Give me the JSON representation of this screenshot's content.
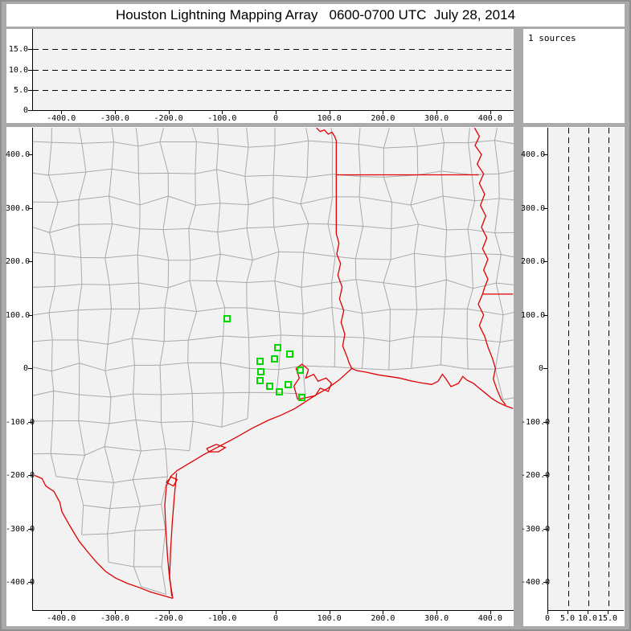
{
  "window": {
    "title": "Houston Lightning Mapping Array   0600-0700 UTC  July 28, 2014"
  },
  "colors": {
    "window_gray": "#aaaaaa",
    "panel_white": "#ffffff",
    "plot_gray": "#f2f2f2",
    "county_gray": "#a9a9a9",
    "border_red": "#e00000",
    "station_green": "#00d800",
    "axis_black": "#000000"
  },
  "sources_panel": {
    "label": "1 sources"
  },
  "altitude_top_panel": {
    "yticks": [
      {
        "v": 15,
        "label": "15.0"
      },
      {
        "v": 10,
        "label": "10.0"
      },
      {
        "v": 5,
        "label": "5.0"
      },
      {
        "v": 0,
        "label": "0"
      }
    ],
    "dash_levels": [
      5,
      10,
      15
    ],
    "xticks": [
      {
        "v": -400,
        "label": "-400.0"
      },
      {
        "v": -300,
        "label": "-300.0"
      },
      {
        "v": -200,
        "label": "-200.0"
      },
      {
        "v": -100,
        "label": "-100.0"
      },
      {
        "v": 0,
        "label": "0"
      },
      {
        "v": 100,
        "label": "100.0"
      },
      {
        "v": 200,
        "label": "200.0"
      },
      {
        "v": 300,
        "label": "300.0"
      },
      {
        "v": 400,
        "label": "400.0"
      }
    ]
  },
  "map_panel": {
    "x_range_km": [
      -454,
      443
    ],
    "y_range_km": [
      -454,
      448
    ],
    "xticks": [
      {
        "v": -400,
        "label": "-400.0"
      },
      {
        "v": -300,
        "label": "-300.0"
      },
      {
        "v": -200,
        "label": "-200.0"
      },
      {
        "v": -100,
        "label": "-100.0"
      },
      {
        "v": 0,
        "label": "0"
      },
      {
        "v": 100,
        "label": "100.0"
      },
      {
        "v": 200,
        "label": "200.0"
      },
      {
        "v": 300,
        "label": "300.0"
      },
      {
        "v": 400,
        "label": "400.0"
      }
    ],
    "yticks": [
      {
        "v": 400,
        "label": "400.0"
      },
      {
        "v": 300,
        "label": "300.0"
      },
      {
        "v": 200,
        "label": "200.0"
      },
      {
        "v": 100,
        "label": "100.0"
      },
      {
        "v": 0,
        "label": "0"
      },
      {
        "v": -100,
        "label": "-100.0"
      },
      {
        "v": -200,
        "label": "-200.0"
      },
      {
        "v": -300,
        "label": "-300.0"
      },
      {
        "v": -400,
        "label": "-400.0"
      }
    ]
  },
  "altitude_right_panel": {
    "xticks": [
      {
        "v": 0,
        "label": "0"
      },
      {
        "v": 5,
        "label": "5.0"
      },
      {
        "v": 10,
        "label": "10.0"
      },
      {
        "v": 15,
        "label": "15.0"
      }
    ],
    "dash_levels": [
      5,
      10,
      15
    ],
    "yticks": [
      {
        "v": 400,
        "label": "400.0"
      },
      {
        "v": 300,
        "label": "300.0"
      },
      {
        "v": 200,
        "label": "200.0"
      },
      {
        "v": 100,
        "label": "100.0"
      },
      {
        "v": 0,
        "label": "0"
      },
      {
        "v": -100,
        "label": "-100.0"
      },
      {
        "v": -200,
        "label": "-200.0"
      },
      {
        "v": -300,
        "label": "-300.0"
      },
      {
        "v": -400,
        "label": "-400.0"
      }
    ]
  },
  "stations_km": [
    [
      -93,
      92
    ],
    [
      1,
      38
    ],
    [
      -4,
      17
    ],
    [
      -31,
      12
    ],
    [
      24,
      26
    ],
    [
      -30,
      -8
    ],
    [
      43,
      -5
    ],
    [
      -32,
      -24
    ],
    [
      -13,
      -35
    ],
    [
      21,
      -32
    ],
    [
      4,
      -45
    ],
    [
      47,
      -56
    ]
  ],
  "map_geometry": {
    "red_lines": [
      [
        [
          75,
          448
        ],
        [
          82,
          441
        ],
        [
          90,
          444
        ],
        [
          97,
          436
        ],
        [
          104,
          440
        ],
        [
          109,
          432
        ],
        [
          112,
          424
        ],
        [
          112,
          420
        ]
      ],
      [
        [
          112,
          420
        ],
        [
          112,
          250
        ]
      ],
      [
        [
          112,
          250
        ],
        [
          117,
          232
        ],
        [
          113,
          212
        ],
        [
          120,
          194
        ],
        [
          115,
          172
        ],
        [
          123,
          150
        ],
        [
          118,
          128
        ],
        [
          126,
          106
        ],
        [
          121,
          84
        ],
        [
          128,
          62
        ],
        [
          124,
          40
        ],
        [
          132,
          20
        ],
        [
          136,
          8
        ],
        [
          141,
          -2
        ]
      ],
      [
        [
          112,
          360
        ],
        [
          378,
          360
        ]
      ],
      [
        [
          370,
          448
        ],
        [
          379,
          432
        ],
        [
          371,
          415
        ],
        [
          383,
          398
        ],
        [
          375,
          380
        ],
        [
          387,
          362
        ],
        [
          379,
          344
        ],
        [
          389,
          324
        ],
        [
          381,
          303
        ],
        [
          391,
          283
        ],
        [
          383,
          262
        ],
        [
          393,
          242
        ],
        [
          385,
          222
        ],
        [
          395,
          202
        ],
        [
          387,
          182
        ],
        [
          395,
          165
        ],
        [
          389,
          150
        ],
        [
          385,
          137
        ]
      ],
      [
        [
          385,
          137
        ],
        [
          442,
          137
        ]
      ],
      [
        [
          385,
          137
        ],
        [
          377,
          118
        ],
        [
          387,
          98
        ],
        [
          379,
          78
        ],
        [
          389,
          58
        ],
        [
          395,
          38
        ],
        [
          403,
          18
        ],
        [
          409,
          -2
        ],
        [
          405,
          -22
        ],
        [
          412,
          -42
        ],
        [
          420,
          -60
        ],
        [
          428,
          -70
        ]
      ],
      [
        [
          -193,
          -432
        ],
        [
          -199,
          -396
        ],
        [
          -203,
          -352
        ],
        [
          -206,
          -304
        ],
        [
          -208,
          -258
        ],
        [
          -205,
          -222
        ],
        [
          -197,
          -204
        ],
        [
          -185,
          -193
        ],
        [
          -160,
          -178
        ],
        [
          -135,
          -163
        ],
        [
          -105,
          -147
        ],
        [
          -75,
          -131
        ],
        [
          -45,
          -114
        ],
        [
          -15,
          -99
        ],
        [
          10,
          -89
        ],
        [
          35,
          -77
        ],
        [
          55,
          -64
        ],
        [
          75,
          -51
        ],
        [
          95,
          -40
        ],
        [
          118,
          -23
        ],
        [
          141,
          -2
        ],
        [
          150,
          -6
        ],
        [
          168,
          -9
        ],
        [
          190,
          -14
        ],
        [
          210,
          -17
        ],
        [
          230,
          -20
        ],
        [
          250,
          -25
        ],
        [
          270,
          -29
        ],
        [
          290,
          -32
        ],
        [
          302,
          -26
        ],
        [
          310,
          -13
        ],
        [
          317,
          -22
        ],
        [
          326,
          -36
        ],
        [
          340,
          -30
        ],
        [
          348,
          -17
        ],
        [
          356,
          -24
        ],
        [
          368,
          -30
        ],
        [
          380,
          -40
        ],
        [
          390,
          -48
        ],
        [
          402,
          -58
        ],
        [
          415,
          -66
        ],
        [
          428,
          -72
        ],
        [
          442,
          -77
        ]
      ],
      [
        [
          -186,
          -198
        ],
        [
          -190,
          -240
        ],
        [
          -194,
          -290
        ],
        [
          -197,
          -340
        ],
        [
          -199,
          -390
        ],
        [
          -195,
          -428
        ]
      ],
      [
        [
          40,
          -60
        ],
        [
          33,
          -35
        ],
        [
          43,
          -20
        ],
        [
          37,
          -2
        ],
        [
          48,
          6
        ],
        [
          60,
          -4
        ],
        [
          55,
          -20
        ],
        [
          70,
          -13
        ],
        [
          78,
          -26
        ],
        [
          93,
          -20
        ],
        [
          103,
          -30
        ],
        [
          97,
          -45
        ],
        [
          82,
          -39
        ],
        [
          73,
          -53
        ],
        [
          40,
          -60
        ]
      ],
      [
        [
          -130,
          -152
        ],
        [
          -112,
          -144
        ],
        [
          -95,
          -150
        ],
        [
          -108,
          -158
        ],
        [
          -125,
          -158
        ],
        [
          -130,
          -152
        ]
      ],
      [
        [
          -205,
          -215
        ],
        [
          -196,
          -205
        ],
        [
          -185,
          -210
        ],
        [
          -192,
          -222
        ],
        [
          -205,
          -215
        ]
      ],
      [
        [
          -451,
          -202
        ],
        [
          -437,
          -208
        ],
        [
          -430,
          -222
        ],
        [
          -415,
          -232
        ],
        [
          -404,
          -252
        ],
        [
          -400,
          -270
        ],
        [
          -390,
          -288
        ],
        [
          -380,
          -305
        ],
        [
          -368,
          -325
        ],
        [
          -352,
          -345
        ],
        [
          -335,
          -365
        ],
        [
          -318,
          -382
        ],
        [
          -300,
          -394
        ],
        [
          -278,
          -404
        ],
        [
          -255,
          -412
        ],
        [
          -235,
          -420
        ],
        [
          -193,
          -432
        ]
      ]
    ],
    "land_test": {
      "coast_fn": [
        [
          -185,
          -193
        ],
        [
          -135,
          -163
        ],
        [
          -75,
          -131
        ],
        [
          -15,
          -99
        ],
        [
          35,
          -77
        ],
        [
          75,
          -51
        ],
        [
          118,
          -23
        ],
        [
          141,
          -2
        ],
        [
          190,
          -14
        ],
        [
          230,
          -20
        ],
        [
          290,
          -32
        ],
        [
          352,
          -18
        ],
        [
          390,
          -48
        ],
        [
          442,
          -77
        ]
      ],
      "mex_fn": [
        [
          -454,
          -200
        ],
        [
          -430,
          -215
        ],
        [
          -404,
          -252
        ],
        [
          -380,
          -305
        ],
        [
          -352,
          -345
        ],
        [
          -318,
          -382
        ],
        [
          -278,
          -404
        ],
        [
          -235,
          -420
        ],
        [
          -193,
          -432
        ]
      ]
    }
  },
  "county_mesh": {
    "cell": 52,
    "jitter": 9,
    "seed": 7
  }
}
